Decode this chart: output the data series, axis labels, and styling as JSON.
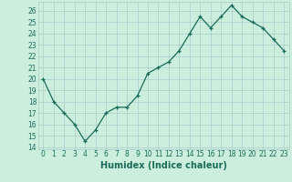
{
  "x": [
    0,
    1,
    2,
    3,
    4,
    5,
    6,
    7,
    8,
    9,
    10,
    11,
    12,
    13,
    14,
    15,
    16,
    17,
    18,
    19,
    20,
    21,
    22,
    23
  ],
  "y": [
    20,
    18,
    17,
    16,
    14.5,
    15.5,
    17,
    17.5,
    17.5,
    18.5,
    20.5,
    21,
    21.5,
    22.5,
    24,
    25.5,
    24.5,
    25.5,
    26.5,
    25.5,
    25,
    24.5,
    23.5,
    22.5
  ],
  "line_color": "#1a6b5a",
  "marker": "+",
  "xlabel": "Humidex (Indice chaleur)",
  "xlim": [
    -0.5,
    23.5
  ],
  "ylim": [
    13.8,
    26.8
  ],
  "yticks": [
    14,
    15,
    16,
    17,
    18,
    19,
    20,
    21,
    22,
    23,
    24,
    25,
    26
  ],
  "xticks": [
    0,
    1,
    2,
    3,
    4,
    5,
    6,
    7,
    8,
    9,
    10,
    11,
    12,
    13,
    14,
    15,
    16,
    17,
    18,
    19,
    20,
    21,
    22,
    23
  ],
  "bg_color": "#cceedd",
  "grid_color": "#aacccc",
  "label_fontsize": 7,
  "tick_fontsize": 5.5
}
